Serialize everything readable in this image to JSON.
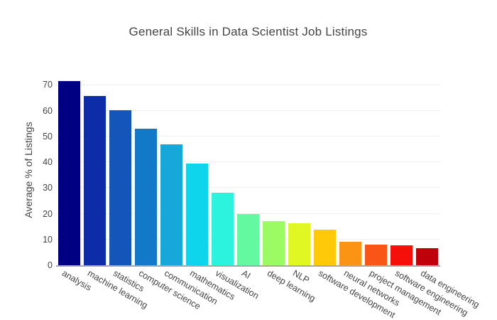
{
  "chart_data": {
    "type": "bar",
    "title": "General Skills in Data Scientist Job Listings",
    "xlabel": "",
    "ylabel": "Average % of Listings",
    "categories": [
      "analysis",
      "machine learning",
      "statistics",
      "computer science",
      "communication",
      "mathematics",
      "visualization",
      "AI",
      "deep learning",
      "NLP",
      "software development",
      "neural networks",
      "project management",
      "software engineering",
      "data engineering"
    ],
    "values": [
      71.5,
      65.8,
      60.1,
      53.0,
      47.0,
      39.4,
      28.2,
      19.8,
      17.2,
      16.4,
      13.7,
      9.2,
      8.0,
      7.7,
      6.5
    ],
    "bar_colors": [
      "#000083",
      "#0C2CA8",
      "#1355B8",
      "#1278C8",
      "#16A8D8",
      "#0FD5EC",
      "#2BF3DE",
      "#63F9A0",
      "#9CFA62",
      "#E0F724",
      "#FDC908",
      "#FB9314",
      "#F95516",
      "#F50F0A",
      "#BE010B"
    ],
    "yticks": [
      0,
      10,
      20,
      30,
      40,
      50,
      60,
      70
    ],
    "ylim": [
      0,
      74
    ],
    "grid": true,
    "legend_position": "none",
    "x_tick_angle_deg": 30,
    "colors": {
      "background": "#ffffff",
      "title_text": "#444444",
      "tick_text": "#444444",
      "gridline": "#EEF0F2",
      "axis_line": "#A7A7A7"
    }
  }
}
